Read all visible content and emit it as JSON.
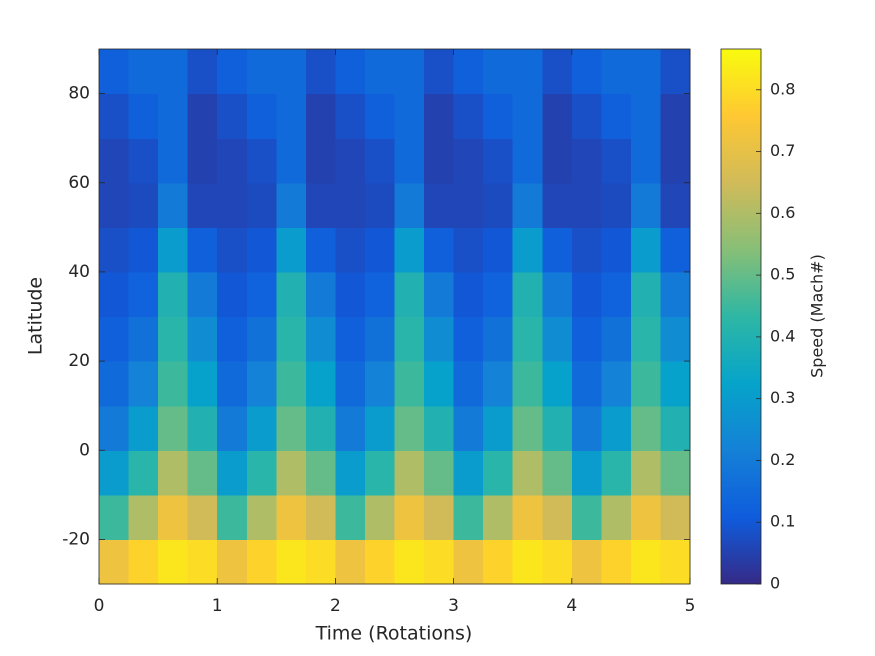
{
  "chart_data": {
    "type": "heatmap",
    "xlabel": "Time (Rotations)",
    "ylabel": "Latitude",
    "colorbar_label": "Speed (Mach#)",
    "x": [
      0.125,
      0.375,
      0.625,
      0.875,
      1.125,
      1.375,
      1.625,
      1.875,
      2.125,
      2.375,
      2.625,
      2.875,
      3.125,
      3.375,
      3.625,
      3.875,
      4.125,
      4.375,
      4.625,
      4.875
    ],
    "y": [
      -25,
      -15,
      -5,
      5,
      15,
      25,
      35,
      45,
      55,
      65,
      75,
      85
    ],
    "z": [
      [
        0.72,
        0.78,
        0.82,
        0.8,
        0.72,
        0.78,
        0.82,
        0.8,
        0.72,
        0.78,
        0.82,
        0.8,
        0.72,
        0.78,
        0.82,
        0.8,
        0.72,
        0.78,
        0.82,
        0.8
      ],
      [
        0.45,
        0.6,
        0.72,
        0.65,
        0.45,
        0.6,
        0.72,
        0.65,
        0.45,
        0.6,
        0.72,
        0.65,
        0.45,
        0.6,
        0.72,
        0.65,
        0.45,
        0.6,
        0.72,
        0.65
      ],
      [
        0.3,
        0.42,
        0.6,
        0.5,
        0.3,
        0.42,
        0.6,
        0.5,
        0.3,
        0.42,
        0.6,
        0.5,
        0.3,
        0.42,
        0.6,
        0.5,
        0.3,
        0.42,
        0.6,
        0.5
      ],
      [
        0.2,
        0.3,
        0.5,
        0.4,
        0.2,
        0.3,
        0.5,
        0.4,
        0.2,
        0.3,
        0.5,
        0.4,
        0.2,
        0.3,
        0.5,
        0.4,
        0.2,
        0.3,
        0.5,
        0.4
      ],
      [
        0.15,
        0.22,
        0.45,
        0.32,
        0.15,
        0.22,
        0.45,
        0.32,
        0.15,
        0.22,
        0.45,
        0.32,
        0.15,
        0.22,
        0.45,
        0.32,
        0.15,
        0.22,
        0.45,
        0.32
      ],
      [
        0.12,
        0.17,
        0.42,
        0.25,
        0.12,
        0.17,
        0.42,
        0.25,
        0.12,
        0.17,
        0.42,
        0.25,
        0.12,
        0.17,
        0.42,
        0.25,
        0.12,
        0.17,
        0.42,
        0.25
      ],
      [
        0.1,
        0.13,
        0.4,
        0.2,
        0.1,
        0.13,
        0.4,
        0.2,
        0.1,
        0.13,
        0.4,
        0.2,
        0.1,
        0.13,
        0.4,
        0.2,
        0.1,
        0.13,
        0.4,
        0.2
      ],
      [
        0.08,
        0.1,
        0.3,
        0.12,
        0.08,
        0.1,
        0.3,
        0.12,
        0.08,
        0.1,
        0.3,
        0.12,
        0.08,
        0.1,
        0.3,
        0.12,
        0.08,
        0.1,
        0.3,
        0.12
      ],
      [
        0.06,
        0.07,
        0.2,
        0.06,
        0.06,
        0.07,
        0.2,
        0.06,
        0.06,
        0.07,
        0.2,
        0.06,
        0.06,
        0.07,
        0.2,
        0.06,
        0.06,
        0.07,
        0.2,
        0.06
      ],
      [
        0.06,
        0.08,
        0.15,
        0.05,
        0.06,
        0.08,
        0.15,
        0.05,
        0.06,
        0.08,
        0.15,
        0.05,
        0.06,
        0.08,
        0.15,
        0.05,
        0.06,
        0.08,
        0.15,
        0.05
      ],
      [
        0.08,
        0.12,
        0.15,
        0.05,
        0.08,
        0.12,
        0.15,
        0.05,
        0.08,
        0.12,
        0.15,
        0.05,
        0.08,
        0.12,
        0.15,
        0.05,
        0.08,
        0.12,
        0.15,
        0.05
      ],
      [
        0.12,
        0.15,
        0.15,
        0.08,
        0.12,
        0.15,
        0.15,
        0.08,
        0.12,
        0.15,
        0.15,
        0.08,
        0.12,
        0.15,
        0.15,
        0.08,
        0.12,
        0.15,
        0.15,
        0.08
      ]
    ],
    "xlim": [
      0,
      5
    ],
    "xticks": [
      0,
      1,
      2,
      3,
      4,
      5
    ],
    "ylim": [
      -30,
      90
    ],
    "yticks": [
      -20,
      0,
      20,
      40,
      60,
      80
    ],
    "clim": [
      0,
      0.866
    ],
    "cticks": [
      0,
      0.1,
      0.2,
      0.3,
      0.4,
      0.5,
      0.6,
      0.7,
      0.8
    ],
    "colormap": [
      "#352a87",
      "#0f5cdd",
      "#1481d6",
      "#06a4ca",
      "#2eb7a4",
      "#87bf77",
      "#d1bb59",
      "#fec832",
      "#f9fb0e"
    ]
  }
}
